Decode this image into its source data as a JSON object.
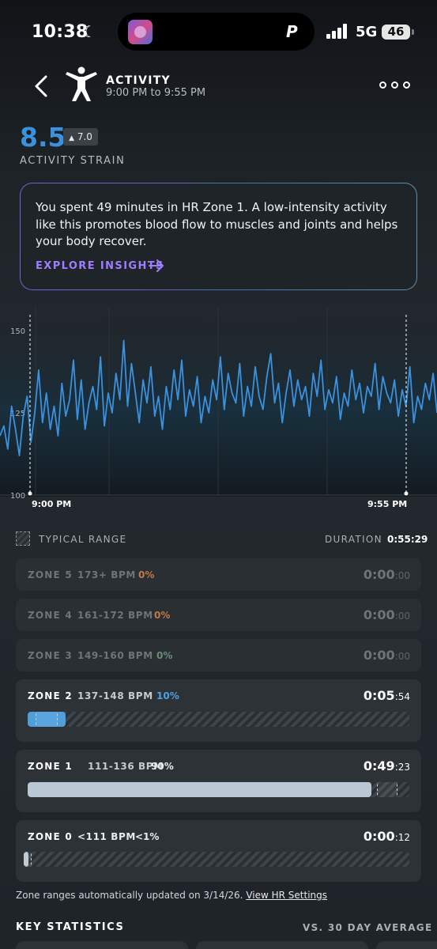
{
  "status_bar": {
    "time": "10:38",
    "network": "5G",
    "battery": "46",
    "dynamic_island_glyph": "P"
  },
  "header": {
    "title": "ACTIVITY",
    "time_range": "9:00 PM to 9:55 PM"
  },
  "strain": {
    "value": "8.5",
    "badge": "7.0",
    "label": "ACTIVITY STRAIN"
  },
  "insight": {
    "text": "You spent 49 minutes in HR Zone 1. A low-intensity activity like this promotes blood flow to muscles and joints and helps your body recover.",
    "link": "EXPLORE INSIGHTS"
  },
  "chart_data": {
    "type": "line",
    "series": [
      {
        "values": [
          118,
          121,
          114,
          127,
          120,
          112,
          124,
          130,
          116,
          125,
          138,
          122,
          131,
          120,
          127,
          118,
          134,
          124,
          129,
          141,
          123,
          135,
          120,
          128,
          133,
          126,
          142,
          121,
          131,
          125,
          137,
          129,
          147,
          127,
          140,
          131,
          122,
          135,
          128,
          139,
          124,
          130,
          120,
          133,
          126,
          138,
          129,
          141,
          124,
          132,
          127,
          136,
          122,
          130,
          125,
          135,
          129,
          142,
          126,
          137,
          131,
          128,
          140,
          124,
          133,
          127,
          139,
          130,
          126,
          136,
          143,
          128,
          134,
          122,
          131,
          138,
          127,
          135,
          129,
          133,
          124,
          137,
          130,
          141,
          126,
          132,
          128,
          136,
          123,
          131,
          127,
          138,
          129,
          134,
          125,
          133,
          130,
          140,
          126,
          136,
          131,
          128,
          135,
          124,
          132,
          127,
          139,
          122,
          130,
          126,
          134,
          129,
          137,
          125
        ]
      }
    ],
    "ylim": [
      100,
      150
    ],
    "ytick_labels": [
      "150",
      "125",
      "100"
    ],
    "xtick_labels": [
      "9:00 PM",
      "9:55 PM"
    ],
    "line_color": "#3b91dd"
  },
  "legend": {
    "typical_range": "TYPICAL RANGE",
    "duration_label": "DURATION",
    "duration_value": "0:55:29"
  },
  "zones": [
    {
      "name": "ZONE 5",
      "range": "173+ BPM",
      "pct": "0%",
      "time_main": "0:00",
      "time_sec": ":00",
      "fraction": 0.0
    },
    {
      "name": "ZONE 4",
      "range": "161-172 BPM",
      "pct": "0%",
      "time_main": "0:00",
      "time_sec": ":00",
      "fraction": 0.0
    },
    {
      "name": "ZONE 3",
      "range": "149-160 BPM",
      "pct": "0%",
      "time_main": "0:00",
      "time_sec": ":00",
      "fraction": 0.0
    },
    {
      "name": "ZONE 2",
      "range": "137-148 BPM",
      "pct": "10%",
      "time_main": "0:05",
      "time_sec": ":54",
      "fraction": 0.1
    },
    {
      "name": "ZONE 1",
      "range": "111-136 BPM",
      "pct": "90%",
      "time_main": "0:49",
      "time_sec": ":23",
      "fraction": 0.9
    },
    {
      "name": "ZONE 0",
      "range": "<111 BPM",
      "pct": "<1%",
      "time_main": "0:00",
      "time_sec": ":12",
      "fraction": 0.005
    }
  ],
  "zone_note": {
    "text": "Zone ranges automatically updated on 3/14/26.",
    "link": "View HR Settings"
  },
  "key_statistics": {
    "title": "KEY STATISTICS",
    "comparison": "VS. 30 DAY AVERAGE"
  },
  "colors": {
    "zone_pct_dim": "#c07a45",
    "zone2_pct": "#4aa3e6",
    "zone2_fill": "#4f9fdc",
    "zone1_fill": "#b9c8d4"
  }
}
